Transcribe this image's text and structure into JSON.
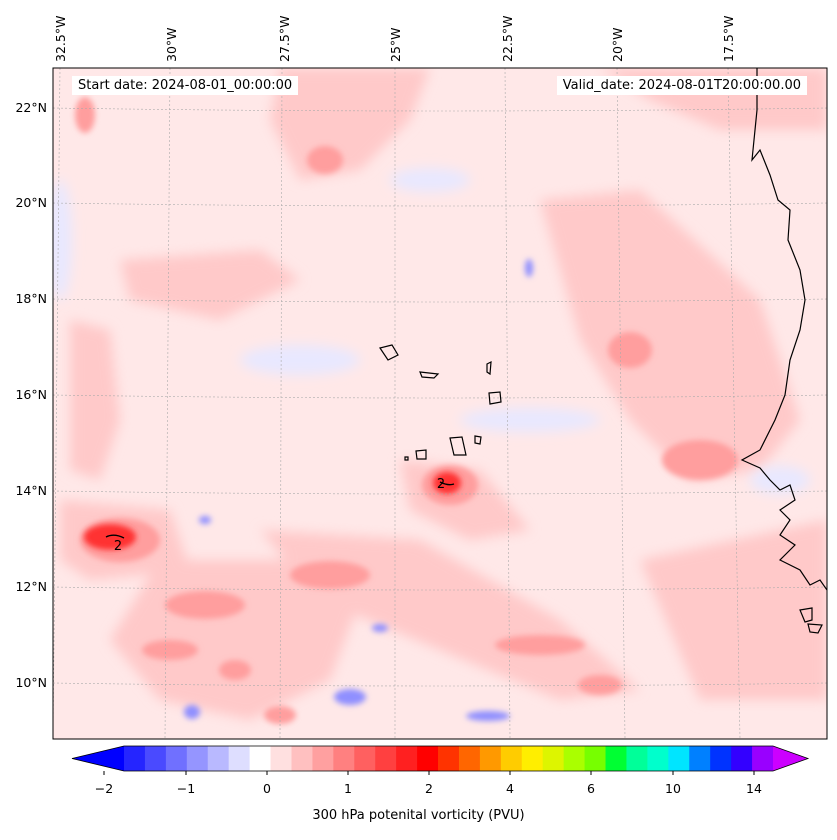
{
  "header": {
    "start_date": "Start date: 2024-08-01_00:00:00",
    "valid_date": "Valid_date: 2024-08-01T20:00:00.00"
  },
  "map": {
    "lon_labels": [
      "32.5°W",
      "30°W",
      "27.5°W",
      "25°W",
      "22.5°W",
      "20°W",
      "17.5°W"
    ],
    "lat_labels": [
      "22°N",
      "20°N",
      "18°N",
      "16°N",
      "14°N",
      "12°N",
      "10°N"
    ],
    "contour_labels": [
      "2",
      "2"
    ],
    "colors": {
      "ocean_background": "#ffe8e8",
      "coastline": "#000000"
    }
  },
  "colorbar": {
    "label": "300 hPa potenital vorticity (PVU)",
    "tick_labels": [
      "−2",
      "−1",
      "0",
      "1",
      "2",
      "4",
      "6",
      "10",
      "14"
    ],
    "colors": [
      "#0000ff",
      "#2525ff",
      "#4a4aff",
      "#7070ff",
      "#9595ff",
      "#b9b9ff",
      "#dedeff",
      "#ffffff",
      "#ffe0e0",
      "#ffc0c0",
      "#ffa0a0",
      "#ff8080",
      "#ff6060",
      "#ff4040",
      "#ff2020",
      "#ff0000",
      "#ff3300",
      "#ff6600",
      "#ff9900",
      "#ffcc00",
      "#ffee00",
      "#ddf500",
      "#aaff00",
      "#77ff00",
      "#00ff33",
      "#00ff99",
      "#00ffcc",
      "#00e5ff",
      "#0080ff",
      "#0033ff",
      "#3300ff",
      "#9900ff",
      "#cc00ff"
    ]
  }
}
